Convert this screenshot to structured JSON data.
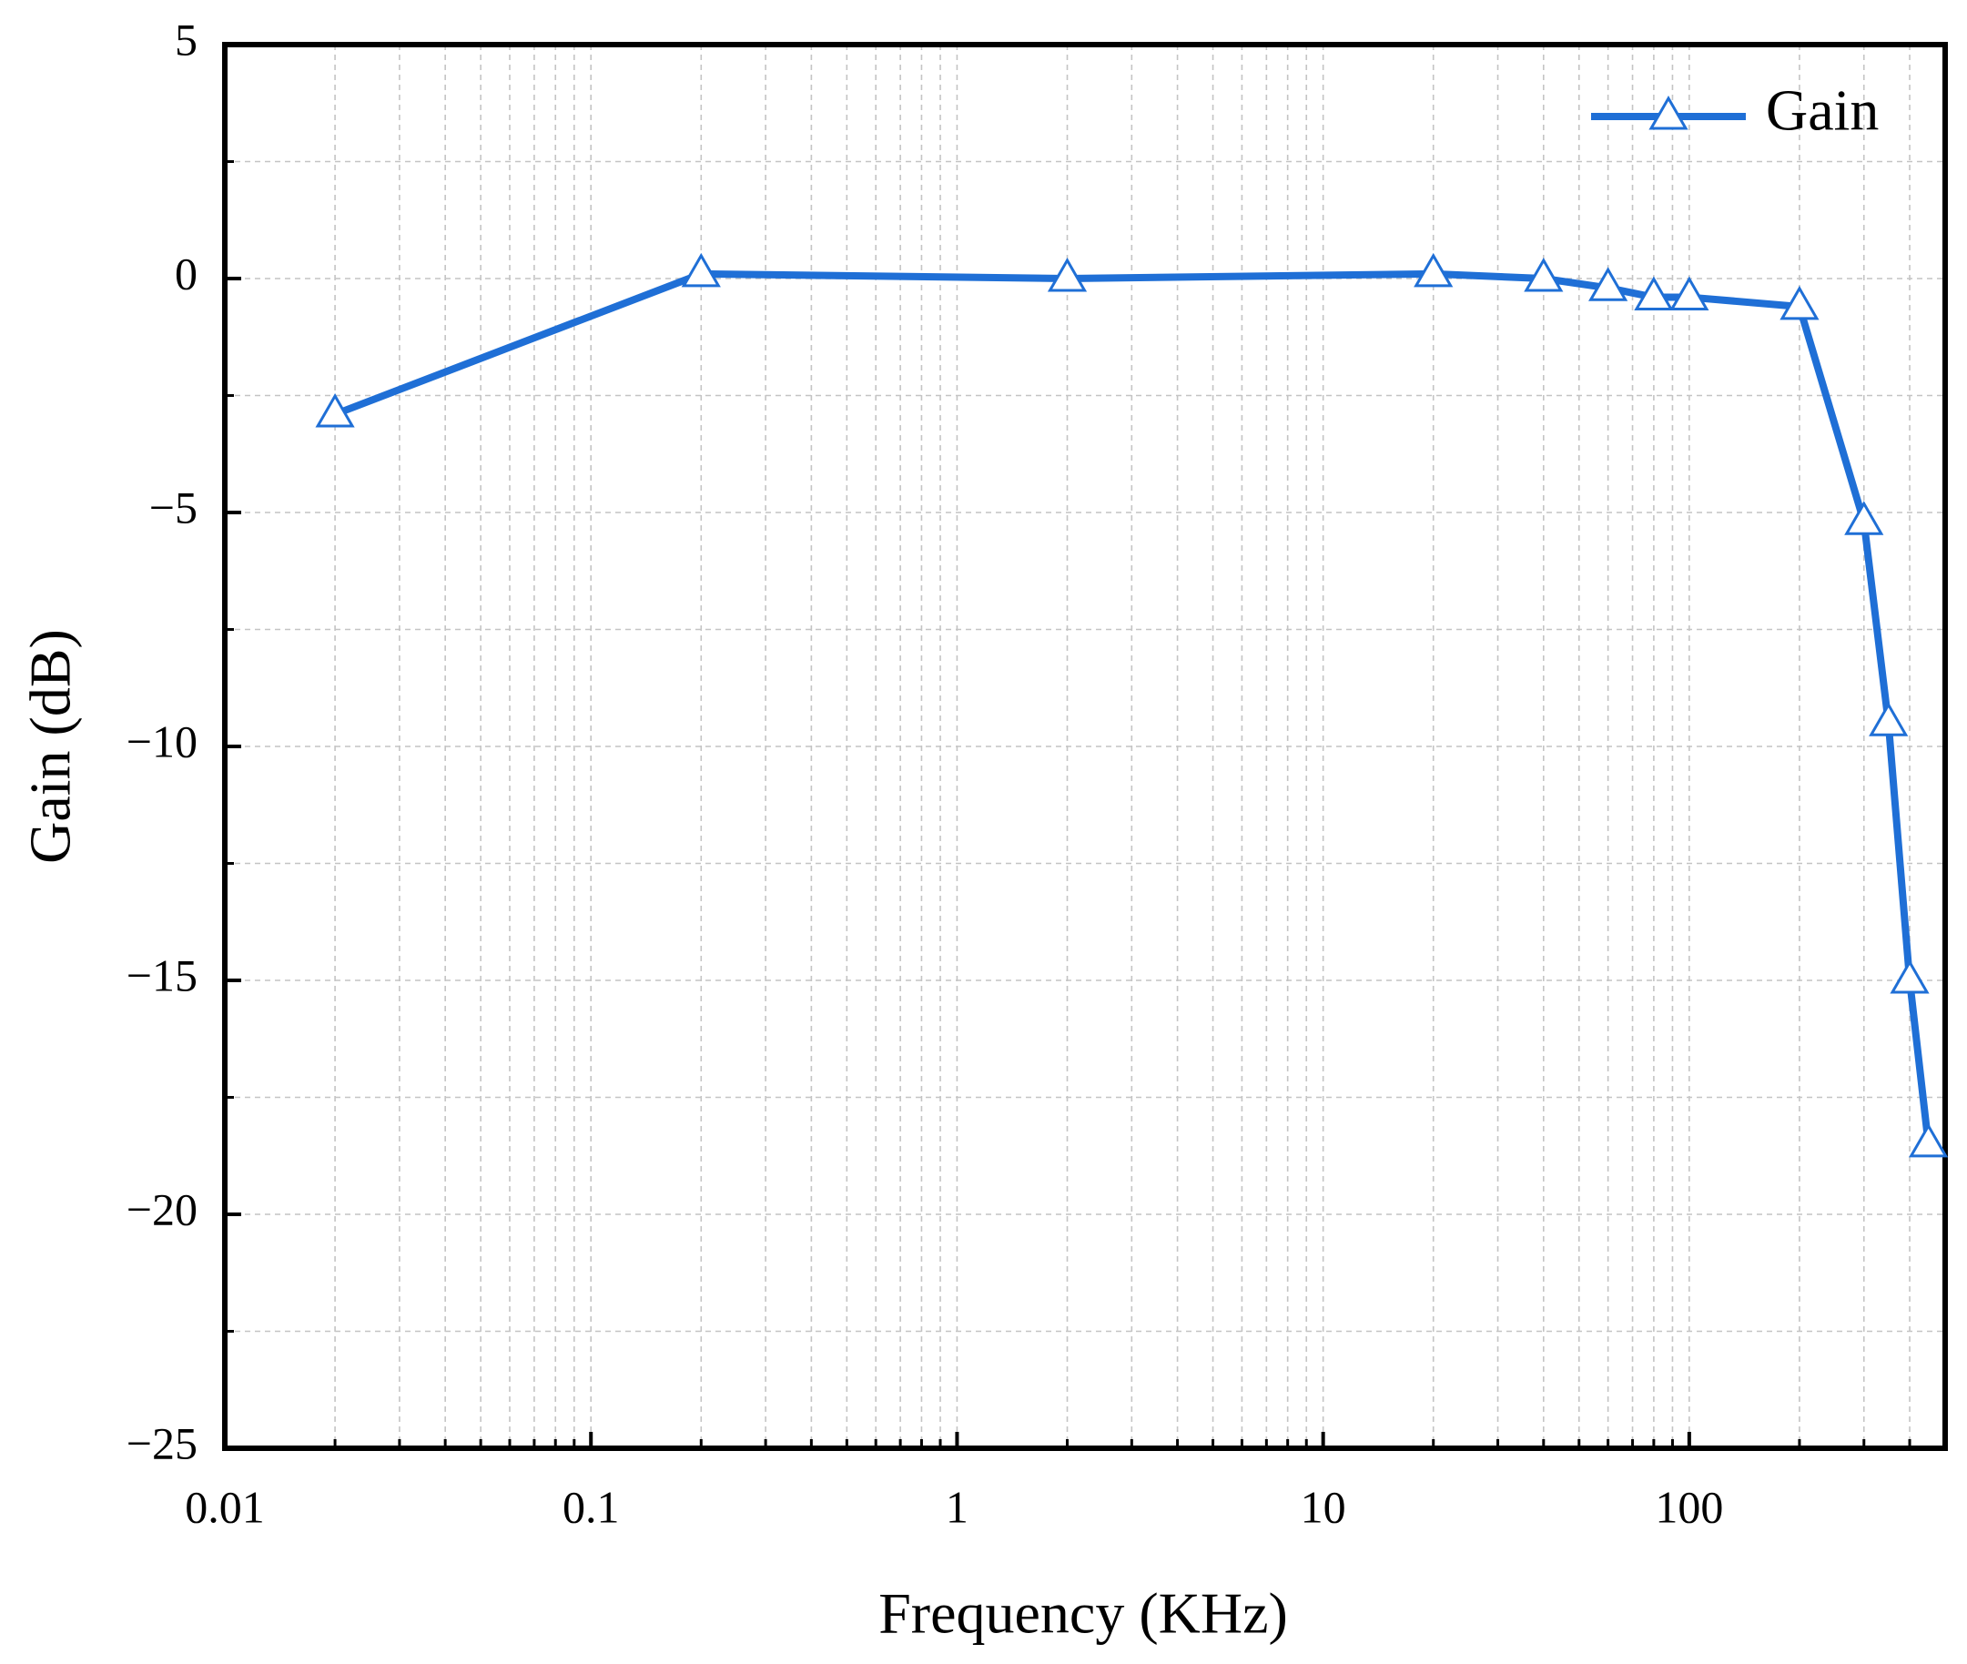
{
  "chart_data": {
    "type": "line",
    "title": null,
    "x_label": "Frequency (KHz)",
    "y_label": "Gain (dB)",
    "x": [
      0.02,
      0.2,
      2,
      20,
      40,
      60,
      80,
      100,
      200,
      300,
      350,
      400,
      450
    ],
    "series": [
      {
        "name": "Gain",
        "color": "#1f6fd6",
        "marker": "triangle",
        "values": [
          -2.9,
          0.1,
          0,
          0.1,
          0,
          -0.2,
          -0.4,
          -0.4,
          -0.6,
          -5.2,
          -9.5,
          -15,
          -18.5
        ]
      }
    ],
    "xscale": "log",
    "xlim": [
      0.01,
      500
    ],
    "xticks": [
      0.01,
      0.1,
      1,
      10,
      100
    ],
    "xticks_minor": [
      0.02,
      0.03,
      0.04,
      0.05,
      0.06,
      0.07,
      0.08,
      0.09,
      0.2,
      0.3,
      0.4,
      0.5,
      0.6,
      0.7,
      0.8,
      0.9,
      2,
      3,
      4,
      5,
      6,
      7,
      8,
      9,
      20,
      30,
      40,
      50,
      60,
      70,
      80,
      90,
      200,
      300,
      400,
      500
    ],
    "ylim": [
      -25,
      5
    ],
    "yticks": [
      {
        "value": -25,
        "label": "−25"
      },
      {
        "value": -20,
        "label": "−20"
      },
      {
        "value": -15,
        "label": "−15"
      },
      {
        "value": -10,
        "label": "−10"
      },
      {
        "value": -5,
        "label": "−5"
      },
      0,
      5
    ],
    "yticks_minor": [
      -22.5,
      -17.5,
      -12.5,
      -7.5,
      -2.5,
      2.5
    ],
    "grid": true,
    "legend": "upper right"
  }
}
